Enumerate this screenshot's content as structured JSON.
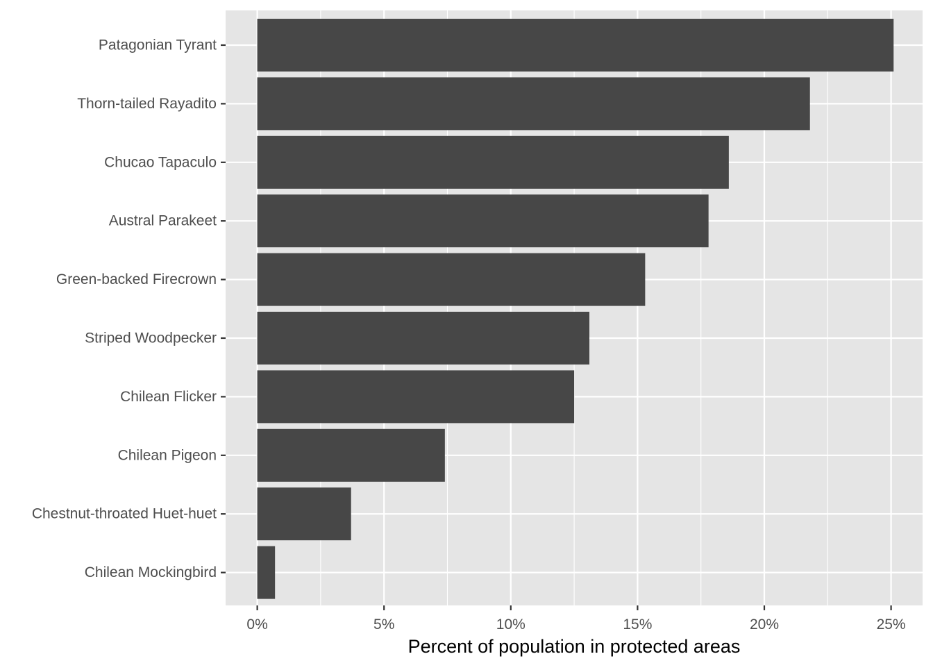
{
  "chart_data": {
    "type": "bar",
    "orientation": "horizontal",
    "title": "",
    "xlabel": "Percent of population in protected areas",
    "ylabel": "",
    "xlim": [
      0,
      25
    ],
    "x_ticks": [
      0,
      5,
      10,
      15,
      20,
      25
    ],
    "x_tick_labels": [
      "0%",
      "5%",
      "10%",
      "15%",
      "20%",
      "25%"
    ],
    "categories": [
      "Patagonian Tyrant",
      "Thorn-tailed Rayadito",
      "Chucao Tapaculo",
      "Austral Parakeet",
      "Green-backed Firecrown",
      "Striped Woodpecker",
      "Chilean Flicker",
      "Chilean Pigeon",
      "Chestnut-throated Huet-huet",
      "Chilean Mockingbird"
    ],
    "values": [
      25.1,
      21.8,
      18.6,
      17.8,
      15.3,
      13.1,
      12.5,
      7.4,
      3.7,
      0.7
    ],
    "grid": true,
    "legend": "none",
    "colors": {
      "bar": "#474747",
      "panel": "#e5e5e5",
      "grid": "#ffffff",
      "tick_text": "#4d4d4d",
      "tick_mark": "#333333",
      "axis_title": "#000000"
    }
  }
}
